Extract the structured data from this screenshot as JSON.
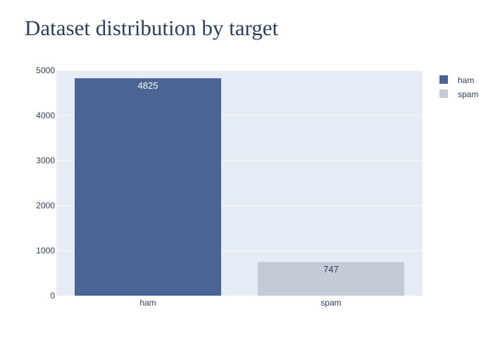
{
  "chart_data": {
    "type": "bar",
    "title": "Dataset distribution by target",
    "xlabel": "",
    "ylabel": "",
    "categories": [
      "ham",
      "spam"
    ],
    "series": [
      {
        "name": "ham",
        "category": "ham",
        "value": 4825,
        "color": "#4a6594",
        "label_color": "#ffffff",
        "label_position": "inside-top"
      },
      {
        "name": "spam",
        "category": "spam",
        "value": 747,
        "color": "#c5cbd6",
        "label_color": "#2a3f5f",
        "label_position": "inside-top"
      }
    ],
    "ylim": [
      0,
      5000
    ],
    "yticks": [
      0,
      1000,
      2000,
      3000,
      4000,
      5000
    ],
    "grid": true,
    "legend_position": "top-right",
    "plot_background": "#e5ecf6",
    "grid_color": "#ffffff",
    "text_color": "#2a3f5f"
  }
}
